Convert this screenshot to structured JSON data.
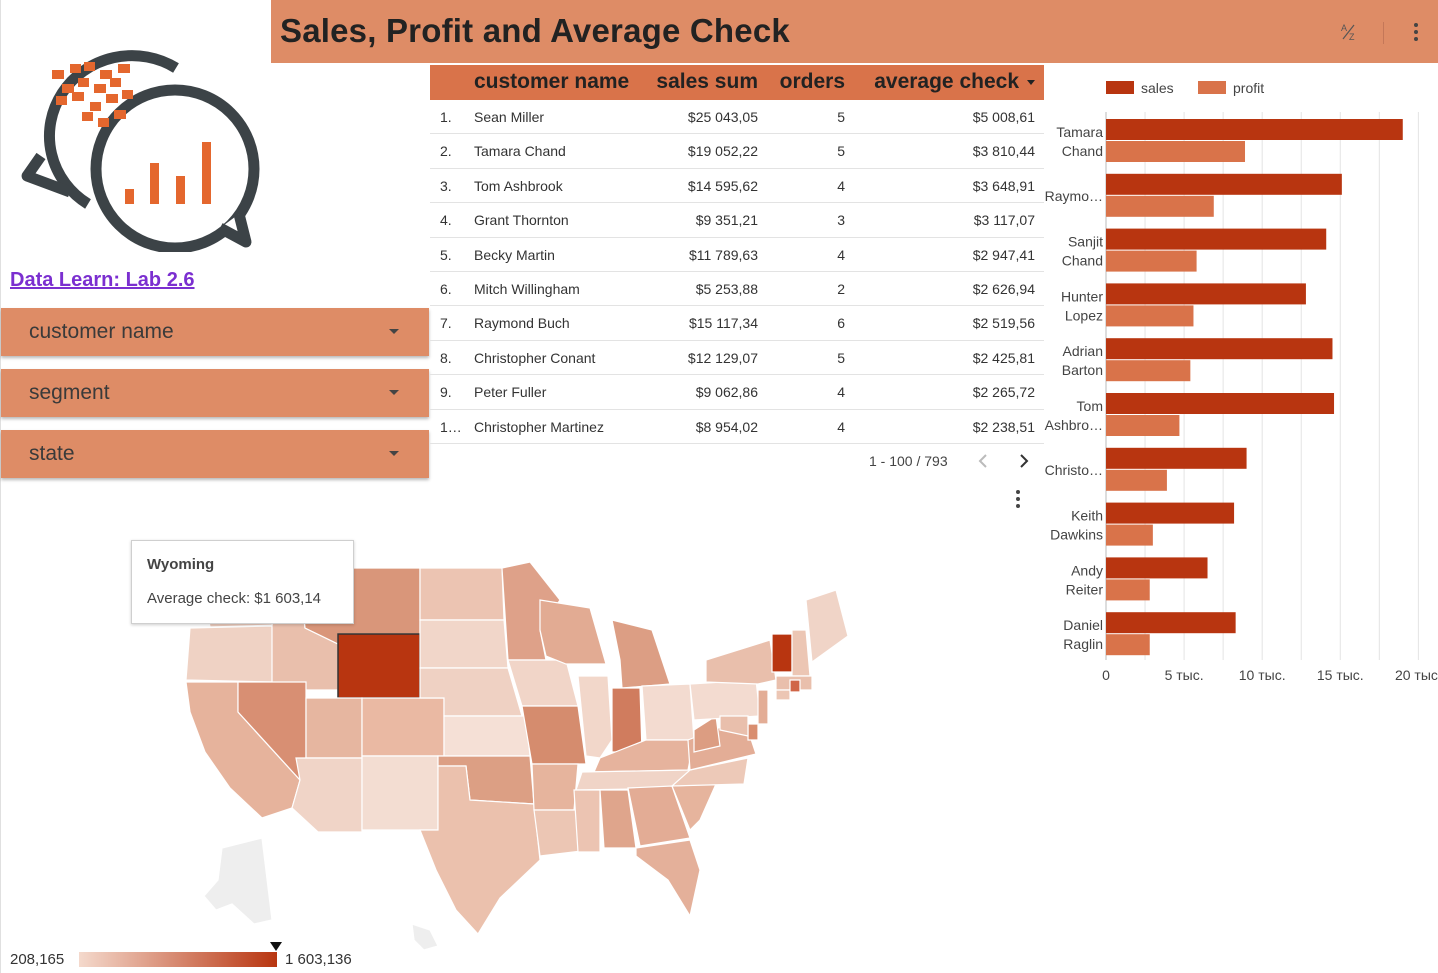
{
  "header": {
    "title": "Sales, Profit and Average Check"
  },
  "sidebar": {
    "link_label": "Data Learn: Lab 2.6",
    "filters": [
      {
        "label": "customer name"
      },
      {
        "label": "segment"
      },
      {
        "label": "state"
      }
    ]
  },
  "table": {
    "columns": [
      "customer name",
      "sales sum",
      "orders",
      "average check"
    ],
    "rows": [
      {
        "index": "1.",
        "name": "Sean Miller",
        "sales": "$25 043,05",
        "orders": "5",
        "avg": "$5 008,61"
      },
      {
        "index": "2.",
        "name": "Tamara Chand",
        "sales": "$19 052,22",
        "orders": "5",
        "avg": "$3 810,44"
      },
      {
        "index": "3.",
        "name": "Tom Ashbrook",
        "sales": "$14 595,62",
        "orders": "4",
        "avg": "$3 648,91"
      },
      {
        "index": "4.",
        "name": "Grant Thornton",
        "sales": "$9 351,21",
        "orders": "3",
        "avg": "$3 117,07"
      },
      {
        "index": "5.",
        "name": "Becky Martin",
        "sales": "$11 789,63",
        "orders": "4",
        "avg": "$2 947,41"
      },
      {
        "index": "6.",
        "name": "Mitch Willingham",
        "sales": "$5 253,88",
        "orders": "2",
        "avg": "$2 626,94"
      },
      {
        "index": "7.",
        "name": "Raymond Buch",
        "sales": "$15 117,34",
        "orders": "6",
        "avg": "$2 519,56"
      },
      {
        "index": "8.",
        "name": "Christopher Conant",
        "sales": "$12 129,07",
        "orders": "5",
        "avg": "$2 425,81"
      },
      {
        "index": "9.",
        "name": "Peter Fuller",
        "sales": "$9 062,86",
        "orders": "4",
        "avg": "$2 265,72"
      },
      {
        "index": "1…",
        "name": "Christopher Martinez",
        "sales": "$8 954,02",
        "orders": "4",
        "avg": "$2 238,51"
      }
    ],
    "pagination": "1 - 100 / 793"
  },
  "map": {
    "tooltip_title": "Wyoming",
    "tooltip_text": "Average check: $1 603,14",
    "legend_min": "208,165",
    "legend_max": "1 603,136",
    "scale_colors": [
      "#f4d9cc",
      "#b83510"
    ]
  },
  "chart_data": {
    "type": "bar",
    "orientation": "horizontal",
    "categories": [
      [
        "Tamara",
        "Chand"
      ],
      [
        "Raymo…"
      ],
      [
        "Sanjit",
        "Chand"
      ],
      [
        "Hunter",
        "Lopez"
      ],
      [
        "Adrian",
        "Barton"
      ],
      [
        "Tom",
        "Ashbro…"
      ],
      [
        "Christo…"
      ],
      [
        "Keith",
        "Dawkins"
      ],
      [
        "Andy",
        "Reiter"
      ],
      [
        "Daniel",
        "Raglin"
      ]
    ],
    "series": [
      {
        "name": "sales",
        "color": "#b83510",
        "values": [
          19000,
          15100,
          14100,
          12800,
          14500,
          14600,
          9000,
          8200,
          6500,
          8300
        ]
      },
      {
        "name": "profit",
        "color": "#d9734a",
        "values": [
          8900,
          6900,
          5800,
          5600,
          5400,
          4700,
          3900,
          3000,
          2800,
          2800
        ]
      }
    ],
    "xlim": [
      0,
      21000
    ],
    "x_ticks": [
      0,
      2500,
      5000,
      7500,
      10000,
      12500,
      15000,
      17500,
      20000
    ],
    "x_tick_labels": [
      {
        "value": 0,
        "label": "0"
      },
      {
        "value": 5000,
        "label": "5 тыс."
      },
      {
        "value": 10000,
        "label": "10 тыс."
      },
      {
        "value": 15000,
        "label": "15 тыс."
      },
      {
        "value": 20000,
        "label": "20 тыс."
      }
    ],
    "legend_position": "top",
    "grid": true
  }
}
